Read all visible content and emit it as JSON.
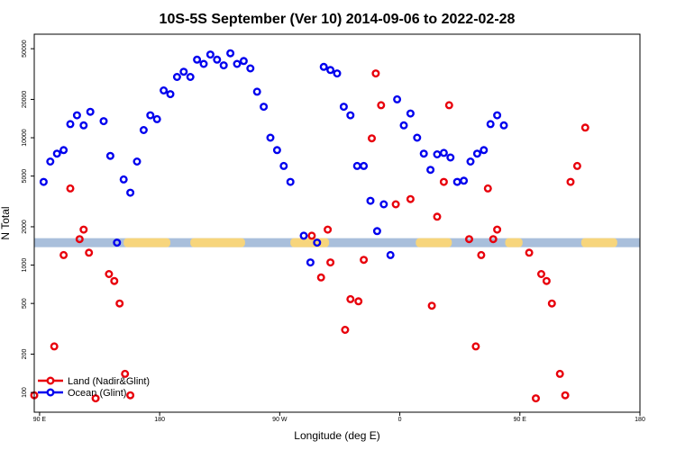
{
  "chart_data": {
    "type": "scatter",
    "title": "10S-5S September (Ver 10)   2014-09-06 to 2022-02-28",
    "xlabel": "Longitude (deg E)",
    "ylabel": "N Total",
    "y_scale": "log",
    "ylim": [
      70,
      65000
    ],
    "x_ticks": [
      {
        "pos": 0,
        "label": "90 E"
      },
      {
        "pos": 90,
        "label": "180"
      },
      {
        "pos": 180,
        "label": "90 W"
      },
      {
        "pos": 270,
        "label": "0"
      },
      {
        "pos": 360,
        "label": "90 E"
      },
      {
        "pos": 450,
        "label": "180"
      }
    ],
    "y_ticks": [
      {
        "value": 100,
        "label": "100"
      },
      {
        "value": 200,
        "label": "200"
      },
      {
        "value": 500,
        "label": "500"
      },
      {
        "value": 1000,
        "label": "1000"
      },
      {
        "value": 2000,
        "label": "2000"
      },
      {
        "value": 5000,
        "label": "5000"
      },
      {
        "value": 10000,
        "label": "10000"
      },
      {
        "value": 20000,
        "label": "20000"
      },
      {
        "value": 50000,
        "label": "50000"
      }
    ],
    "legend": {
      "placement": "bottom-left"
    },
    "band": {
      "value": 1500,
      "color": "#a9bfdb"
    },
    "land_patches": {
      "color": "#f7d57c",
      "x_ranges": [
        [
          63,
          98
        ],
        [
          113,
          154
        ],
        [
          188,
          217
        ],
        [
          282,
          309
        ],
        [
          349,
          362
        ],
        [
          406,
          433
        ]
      ]
    },
    "series": [
      {
        "name": "Land (Nadir&Glint)",
        "color": "#e8000b",
        "x": [
          -4,
          11,
          18,
          23,
          30,
          33,
          37,
          42,
          52,
          56,
          60,
          64,
          68,
          204,
          211,
          216,
          218,
          229,
          233,
          239,
          243,
          249,
          252,
          256,
          267,
          278,
          294,
          298,
          303,
          307,
          322,
          327,
          331,
          336,
          340,
          343,
          367,
          372,
          376,
          380,
          384,
          390,
          394,
          398,
          403,
          409
        ],
        "y": [
          95,
          230,
          1200,
          4000,
          1600,
          1900,
          1250,
          90,
          850,
          750,
          500,
          140,
          95,
          1700,
          800,
          1900,
          1050,
          310,
          540,
          520,
          1100,
          9900,
          32000,
          18000,
          3000,
          3300,
          480,
          2400,
          4500,
          18000,
          1600,
          230,
          1200,
          4000,
          1600,
          1900,
          1250,
          90,
          850,
          750,
          500,
          140,
          95,
          4500,
          6000,
          12000
        ]
      },
      {
        "name": "Ocean (Glint)",
        "color": "#0000ee",
        "x": [
          3,
          8,
          13,
          18,
          23,
          28,
          33,
          38,
          48,
          53,
          58,
          63,
          68,
          73,
          78,
          83,
          88,
          93,
          98,
          103,
          108,
          113,
          118,
          123,
          128,
          133,
          138,
          143,
          148,
          153,
          158,
          163,
          168,
          173,
          178,
          183,
          188,
          198,
          203,
          208,
          213,
          218,
          223,
          228,
          233,
          238,
          243,
          248,
          253,
          258,
          263,
          268,
          273,
          278,
          283,
          288,
          293,
          298,
          303,
          308,
          313,
          318,
          323,
          328,
          333,
          338,
          343,
          348
        ],
        "y": [
          4500,
          6500,
          7500,
          8000,
          12800,
          15000,
          12500,
          16000,
          13500,
          7200,
          1500,
          4700,
          3700,
          6500,
          11500,
          15000,
          14000,
          23500,
          22000,
          30000,
          33000,
          30000,
          41000,
          38000,
          45000,
          41000,
          37000,
          46000,
          38000,
          40000,
          35000,
          23000,
          17500,
          10000,
          8000,
          6000,
          4500,
          1700,
          1050,
          1500,
          36000,
          34000,
          32000,
          17500,
          15000,
          6000,
          6000,
          3200,
          1850,
          3000,
          1200,
          20000,
          12500,
          15500,
          10000,
          7500,
          5600,
          7400,
          7600,
          7000,
          4500,
          4600,
          6500,
          7500,
          8000,
          12800,
          15000,
          12500
        ]
      }
    ]
  }
}
